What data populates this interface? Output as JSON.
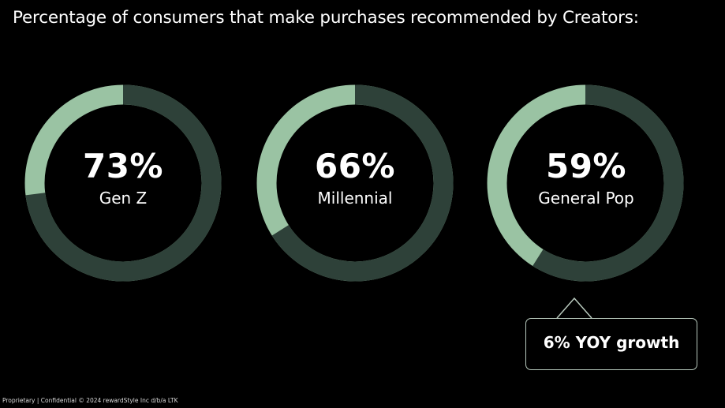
{
  "title": "Percentage of consumers that make purchases recommended by Creators:",
  "chart_data": {
    "type": "donut",
    "series": [
      {
        "label": "Gen Z",
        "value": 73,
        "display": "73%"
      },
      {
        "label": "Millennial",
        "value": 66,
        "display": "66%"
      },
      {
        "label": "General Pop",
        "value": 59,
        "display": "59%"
      }
    ],
    "max": 100,
    "colors": {
      "filled": "#2e4139",
      "remainder": "#9ac3a3"
    }
  },
  "callout": {
    "text": "6% YOY growth"
  },
  "footer": "Proprietary | Confidential © 2024 rewardStyle Inc d/b/a LTK"
}
